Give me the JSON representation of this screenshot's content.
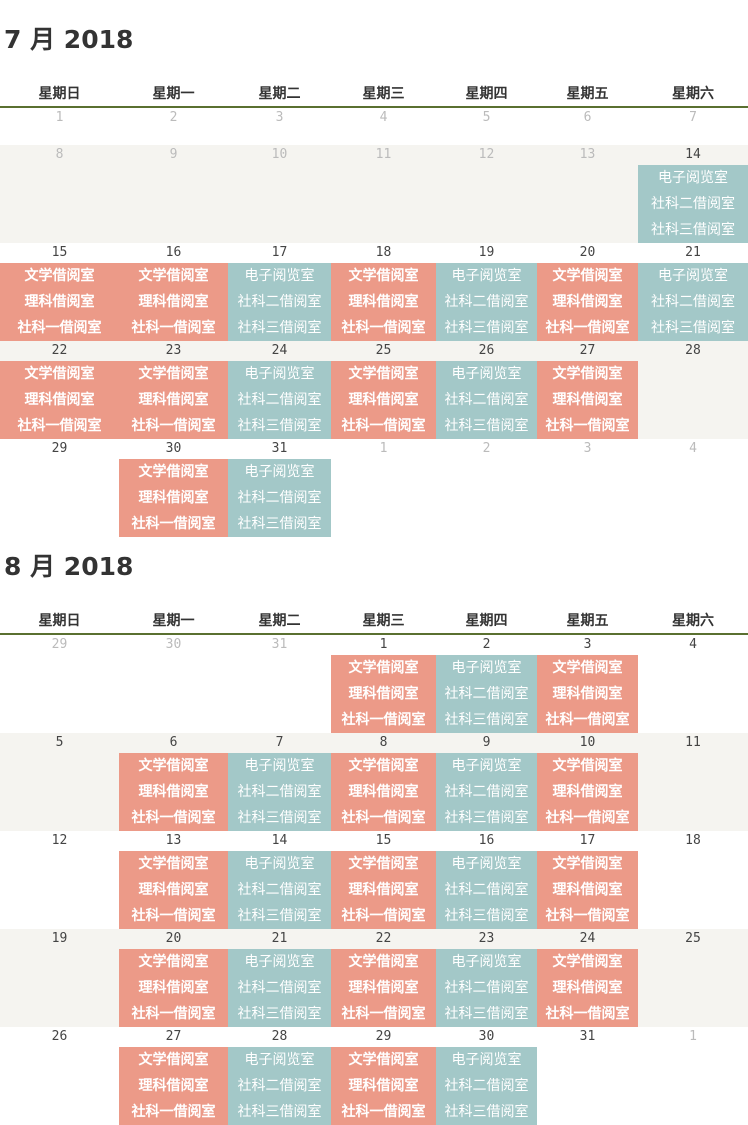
{
  "weekdays": [
    "星期日",
    "星期一",
    "星期二",
    "星期三",
    "星期四",
    "星期五",
    "星期六"
  ],
  "groups": {
    "A": {
      "color": "#ec9a88",
      "rooms": [
        "文学借阅室",
        "理科借阅室",
        "社科一借阅室"
      ]
    },
    "B": {
      "color": "#a3c8c8",
      "rooms": [
        "电子阅览室",
        "社科二借阅室",
        "社科三借阅室"
      ]
    }
  },
  "months": [
    {
      "title": "7 月 2018",
      "weeks": [
        [
          {
            "d": "1",
            "m": true
          },
          {
            "d": "2",
            "m": true
          },
          {
            "d": "3",
            "m": true
          },
          {
            "d": "4",
            "m": true
          },
          {
            "d": "5",
            "m": true
          },
          {
            "d": "6",
            "m": true
          },
          {
            "d": "7",
            "m": true
          }
        ],
        [
          {
            "d": "8",
            "m": true
          },
          {
            "d": "9",
            "m": true
          },
          {
            "d": "10",
            "m": true
          },
          {
            "d": "11",
            "m": true
          },
          {
            "d": "12",
            "m": true
          },
          {
            "d": "13",
            "m": true
          },
          {
            "d": "14",
            "e": "B"
          }
        ],
        [
          {
            "d": "15",
            "e": "A"
          },
          {
            "d": "16",
            "e": "A"
          },
          {
            "d": "17",
            "e": "B"
          },
          {
            "d": "18",
            "e": "A"
          },
          {
            "d": "19",
            "e": "B"
          },
          {
            "d": "20",
            "e": "A"
          },
          {
            "d": "21",
            "e": "B"
          }
        ],
        [
          {
            "d": "22",
            "e": "A"
          },
          {
            "d": "23",
            "e": "A"
          },
          {
            "d": "24",
            "e": "B"
          },
          {
            "d": "25",
            "e": "A"
          },
          {
            "d": "26",
            "e": "B"
          },
          {
            "d": "27",
            "e": "A"
          },
          {
            "d": "28"
          }
        ],
        [
          {
            "d": "29"
          },
          {
            "d": "30",
            "e": "A"
          },
          {
            "d": "31",
            "e": "B"
          },
          {
            "d": "1",
            "m": true
          },
          {
            "d": "2",
            "m": true
          },
          {
            "d": "3",
            "m": true
          },
          {
            "d": "4",
            "m": true
          }
        ]
      ]
    },
    {
      "title": "8 月 2018",
      "weeks": [
        [
          {
            "d": "29",
            "m": true
          },
          {
            "d": "30",
            "m": true
          },
          {
            "d": "31",
            "m": true
          },
          {
            "d": "1",
            "e": "A"
          },
          {
            "d": "2",
            "e": "B"
          },
          {
            "d": "3",
            "e": "A"
          },
          {
            "d": "4"
          }
        ],
        [
          {
            "d": "5"
          },
          {
            "d": "6",
            "e": "A"
          },
          {
            "d": "7",
            "e": "B"
          },
          {
            "d": "8",
            "e": "A"
          },
          {
            "d": "9",
            "e": "B"
          },
          {
            "d": "10",
            "e": "A"
          },
          {
            "d": "11"
          }
        ],
        [
          {
            "d": "12"
          },
          {
            "d": "13",
            "e": "A"
          },
          {
            "d": "14",
            "e": "B"
          },
          {
            "d": "15",
            "e": "A"
          },
          {
            "d": "16",
            "e": "B"
          },
          {
            "d": "17",
            "e": "A"
          },
          {
            "d": "18"
          }
        ],
        [
          {
            "d": "19"
          },
          {
            "d": "20",
            "e": "A"
          },
          {
            "d": "21",
            "e": "B"
          },
          {
            "d": "22",
            "e": "A"
          },
          {
            "d": "23",
            "e": "B"
          },
          {
            "d": "24",
            "e": "A"
          },
          {
            "d": "25"
          }
        ],
        [
          {
            "d": "26"
          },
          {
            "d": "27",
            "e": "A"
          },
          {
            "d": "28",
            "e": "B"
          },
          {
            "d": "29",
            "e": "A"
          },
          {
            "d": "30",
            "e": "B"
          },
          {
            "d": "31"
          },
          {
            "d": "1",
            "m": true
          }
        ]
      ]
    }
  ]
}
